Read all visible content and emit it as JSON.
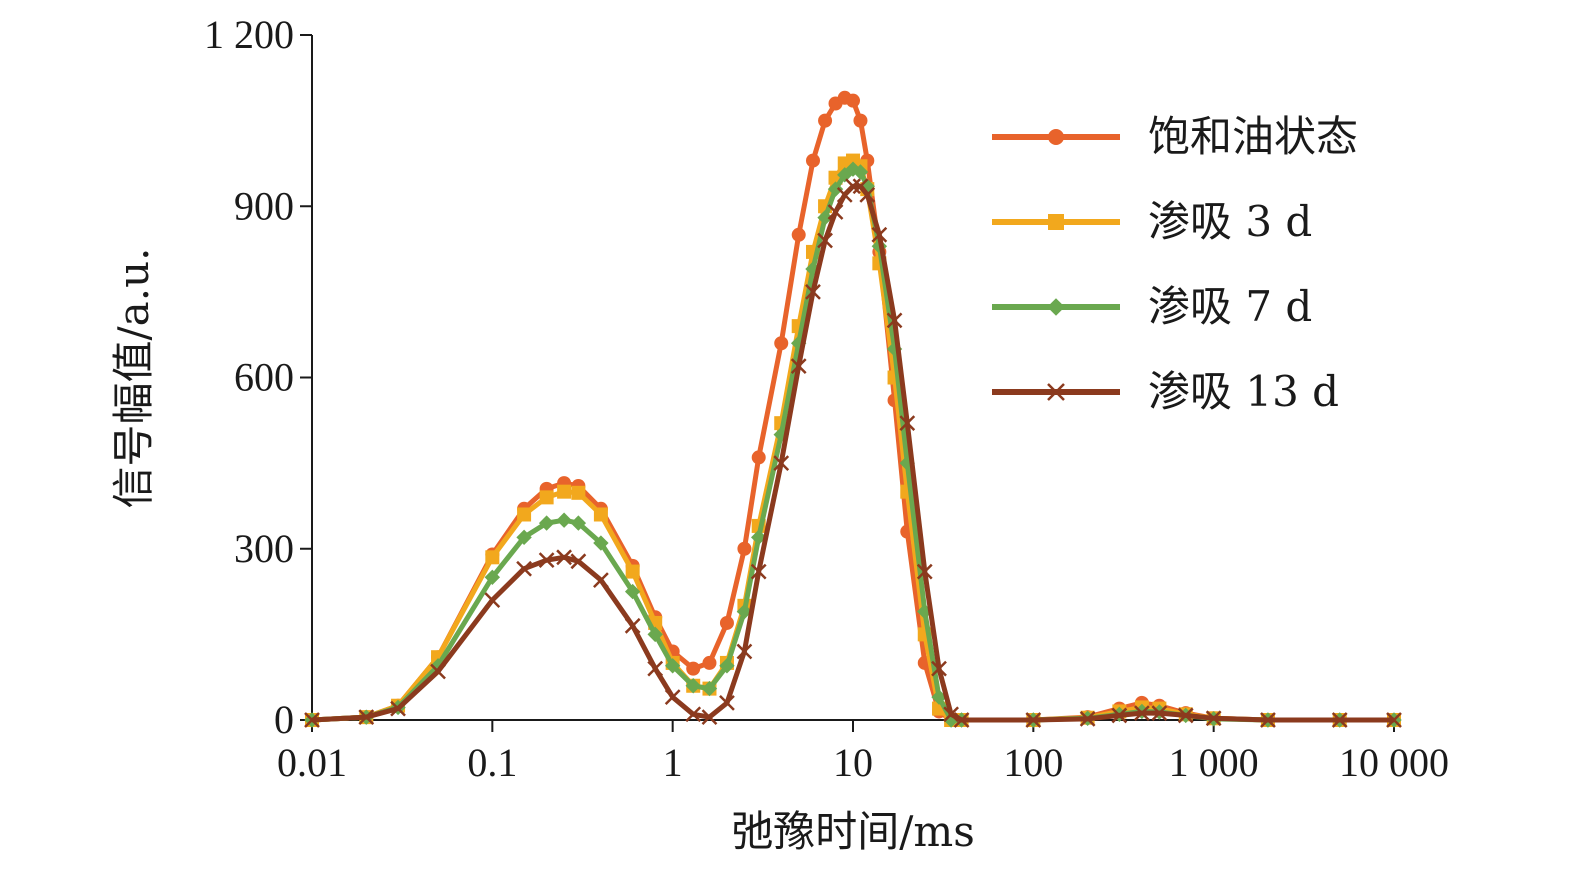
{
  "chart_data": {
    "type": "line",
    "x_scale": "log",
    "xlabel": "弛豫时间/ms",
    "ylabel": "信号幅值/a.u.",
    "xlim": [
      0.01,
      10000
    ],
    "ylim": [
      0,
      1200
    ],
    "x_ticks": [
      0.01,
      0.1,
      1,
      10,
      100,
      1000,
      10000
    ],
    "x_tick_labels": [
      "0.01",
      "0.1",
      "1",
      "10",
      "100",
      "1 000",
      "10 000"
    ],
    "y_ticks": [
      0,
      300,
      600,
      900,
      1200
    ],
    "y_tick_labels": [
      "0",
      "300",
      "600",
      "900",
      "1 200"
    ],
    "grid": false,
    "legend_position": "top-right",
    "series": [
      {
        "name": "饱和油状态",
        "color": "#e8632b",
        "marker": "circle",
        "x": [
          0.01,
          0.02,
          0.03,
          0.05,
          0.1,
          0.15,
          0.2,
          0.25,
          0.3,
          0.4,
          0.6,
          0.8,
          1.0,
          1.3,
          1.6,
          2.0,
          2.5,
          3.0,
          4.0,
          5.0,
          6.0,
          7.0,
          8.0,
          9.0,
          10,
          11,
          12,
          14,
          17,
          20,
          25,
          30,
          35,
          40,
          100,
          200,
          300,
          400,
          500,
          700,
          1000,
          2000,
          5000,
          10000
        ],
        "values": [
          0,
          5,
          25,
          110,
          290,
          370,
          405,
          415,
          410,
          370,
          270,
          180,
          120,
          90,
          100,
          170,
          300,
          460,
          660,
          850,
          980,
          1050,
          1080,
          1090,
          1085,
          1050,
          980,
          820,
          560,
          330,
          100,
          15,
          0,
          0,
          0,
          5,
          20,
          30,
          25,
          12,
          3,
          0,
          0,
          0
        ]
      },
      {
        "name": "渗吸 3 d",
        "color": "#f2a81d",
        "marker": "square",
        "x": [
          0.01,
          0.02,
          0.03,
          0.05,
          0.1,
          0.15,
          0.2,
          0.25,
          0.3,
          0.4,
          0.6,
          0.8,
          1.0,
          1.3,
          1.6,
          2.0,
          2.5,
          3.0,
          4.0,
          5.0,
          6.0,
          7.0,
          8.0,
          9.0,
          10,
          11,
          12,
          14,
          17,
          20,
          25,
          30,
          35,
          40,
          100,
          200,
          300,
          400,
          500,
          700,
          1000,
          2000,
          5000,
          10000
        ],
        "values": [
          0,
          5,
          25,
          110,
          285,
          360,
          390,
          400,
          398,
          360,
          260,
          170,
          100,
          60,
          55,
          100,
          200,
          340,
          520,
          690,
          820,
          900,
          950,
          975,
          980,
          970,
          930,
          800,
          600,
          400,
          150,
          20,
          0,
          0,
          0,
          4,
          15,
          22,
          20,
          10,
          3,
          0,
          0,
          0
        ]
      },
      {
        "name": "渗吸 7 d",
        "color": "#6aa84f",
        "marker": "diamond",
        "x": [
          0.01,
          0.02,
          0.03,
          0.05,
          0.1,
          0.15,
          0.2,
          0.25,
          0.3,
          0.4,
          0.6,
          0.8,
          1.0,
          1.3,
          1.6,
          2.0,
          2.5,
          3.0,
          4.0,
          5.0,
          6.0,
          7.0,
          8.0,
          9.0,
          10,
          11,
          12,
          14,
          17,
          20,
          25,
          30,
          35,
          40,
          100,
          200,
          300,
          400,
          500,
          700,
          1000,
          2000,
          5000,
          10000
        ],
        "values": [
          0,
          5,
          22,
          95,
          250,
          320,
          345,
          350,
          345,
          310,
          225,
          150,
          95,
          60,
          55,
          95,
          190,
          320,
          500,
          660,
          790,
          880,
          930,
          955,
          965,
          960,
          935,
          830,
          650,
          450,
          190,
          40,
          0,
          0,
          0,
          3,
          10,
          15,
          14,
          8,
          2,
          0,
          0,
          0
        ]
      },
      {
        "name": "渗吸 13 d",
        "color": "#8b3a1e",
        "marker": "x",
        "x": [
          0.01,
          0.02,
          0.03,
          0.05,
          0.1,
          0.15,
          0.2,
          0.25,
          0.3,
          0.4,
          0.6,
          0.8,
          1.0,
          1.3,
          1.6,
          2.0,
          2.5,
          3.0,
          4.0,
          5.0,
          6.0,
          7.0,
          8.0,
          9.0,
          10,
          11,
          12,
          14,
          17,
          20,
          25,
          30,
          35,
          40,
          100,
          200,
          300,
          400,
          500,
          700,
          1000,
          2000,
          5000,
          10000
        ],
        "values": [
          0,
          5,
          20,
          85,
          210,
          265,
          280,
          285,
          278,
          245,
          165,
          90,
          40,
          10,
          5,
          30,
          120,
          260,
          450,
          620,
          750,
          840,
          890,
          920,
          935,
          935,
          920,
          850,
          700,
          520,
          260,
          90,
          10,
          0,
          0,
          2,
          8,
          12,
          12,
          8,
          3,
          0,
          0,
          0
        ]
      }
    ]
  }
}
